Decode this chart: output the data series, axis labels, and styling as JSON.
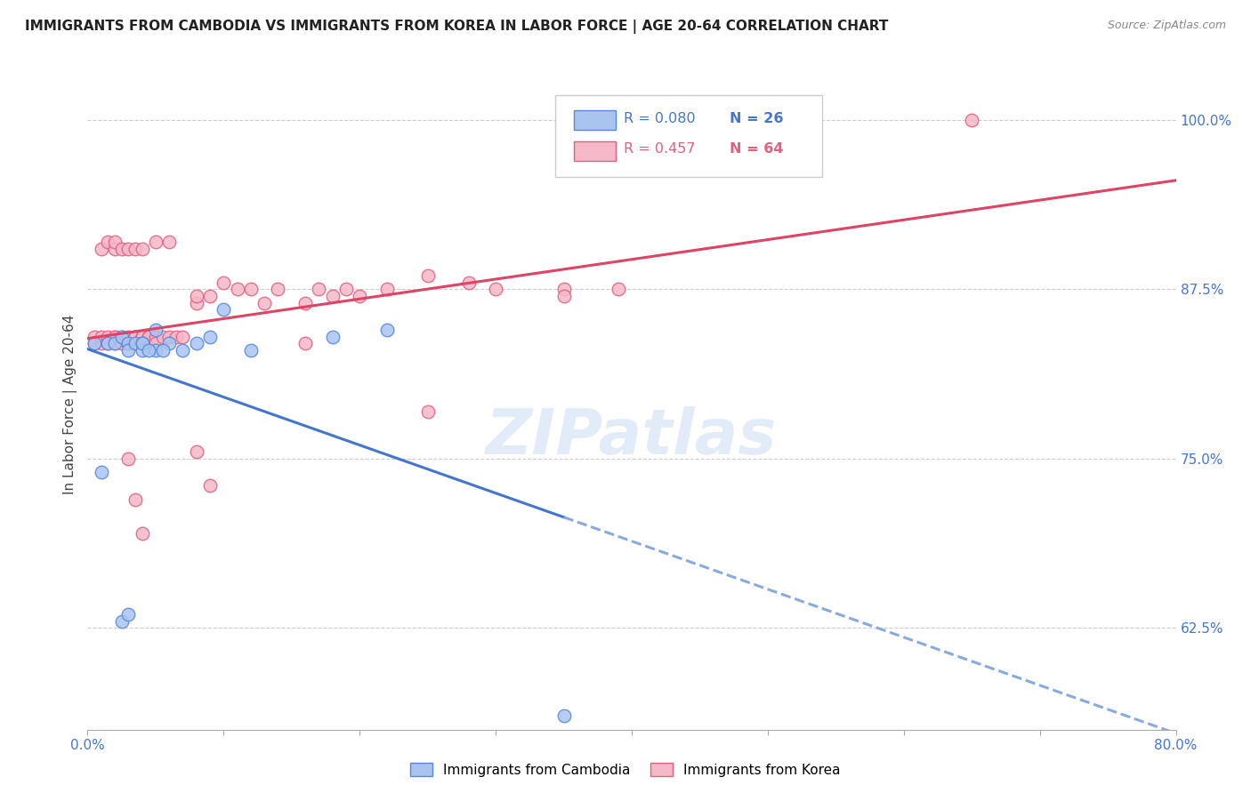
{
  "title": "IMMIGRANTS FROM CAMBODIA VS IMMIGRANTS FROM KOREA IN LABOR FORCE | AGE 20-64 CORRELATION CHART",
  "source": "Source: ZipAtlas.com",
  "ylabel": "In Labor Force | Age 20-64",
  "xlim": [
    0.0,
    0.8
  ],
  "ylim": [
    0.55,
    1.03
  ],
  "xticks": [
    0.0,
    0.1,
    0.2,
    0.3,
    0.4,
    0.5,
    0.6,
    0.7,
    0.8
  ],
  "yticks_right": [
    0.625,
    0.75,
    0.875,
    1.0
  ],
  "yticklabels_right": [
    "62.5%",
    "75.0%",
    "87.5%",
    "100.0%"
  ],
  "cambodia_color": "#aac4f0",
  "cambodia_edge": "#5588dd",
  "korea_color": "#f5b8c8",
  "korea_edge": "#e06080",
  "legend_R_cambodia": "R = 0.080",
  "legend_N_cambodia": "N = 26",
  "legend_R_korea": "R = 0.457",
  "legend_N_korea": "N = 64",
  "watermark": "ZIPatlas",
  "cambodia_x": [
    0.005,
    0.01,
    0.015,
    0.02,
    0.025,
    0.03,
    0.03,
    0.035,
    0.04,
    0.04,
    0.05,
    0.06,
    0.07,
    0.08,
    0.09,
    0.1,
    0.12,
    0.18,
    0.22,
    0.04,
    0.045,
    0.05,
    0.055,
    0.025,
    0.03,
    0.35
  ],
  "cambodia_y": [
    0.835,
    0.74,
    0.835,
    0.835,
    0.84,
    0.835,
    0.83,
    0.835,
    0.835,
    0.83,
    0.83,
    0.835,
    0.83,
    0.835,
    0.84,
    0.86,
    0.83,
    0.84,
    0.845,
    0.835,
    0.83,
    0.845,
    0.83,
    0.63,
    0.635,
    0.56
  ],
  "korea_x": [
    0.005,
    0.005,
    0.01,
    0.01,
    0.015,
    0.015,
    0.02,
    0.02,
    0.02,
    0.025,
    0.025,
    0.03,
    0.03,
    0.035,
    0.035,
    0.04,
    0.04,
    0.04,
    0.045,
    0.045,
    0.05,
    0.05,
    0.055,
    0.06,
    0.065,
    0.07,
    0.08,
    0.08,
    0.09,
    0.1,
    0.11,
    0.12,
    0.13,
    0.14,
    0.16,
    0.17,
    0.18,
    0.19,
    0.2,
    0.22,
    0.25,
    0.28,
    0.3,
    0.35,
    0.39,
    0.01,
    0.015,
    0.02,
    0.02,
    0.025,
    0.03,
    0.035,
    0.04,
    0.05,
    0.06,
    0.35,
    0.03,
    0.035,
    0.04,
    0.16,
    0.25,
    0.08,
    0.09,
    0.65
  ],
  "korea_y": [
    0.84,
    0.835,
    0.835,
    0.84,
    0.84,
    0.835,
    0.84,
    0.835,
    0.84,
    0.835,
    0.84,
    0.84,
    0.835,
    0.84,
    0.84,
    0.84,
    0.84,
    0.84,
    0.84,
    0.84,
    0.84,
    0.835,
    0.84,
    0.84,
    0.84,
    0.84,
    0.865,
    0.87,
    0.87,
    0.88,
    0.875,
    0.875,
    0.865,
    0.875,
    0.865,
    0.875,
    0.87,
    0.875,
    0.87,
    0.875,
    0.885,
    0.88,
    0.875,
    0.875,
    0.875,
    0.905,
    0.91,
    0.905,
    0.91,
    0.905,
    0.905,
    0.905,
    0.905,
    0.91,
    0.91,
    0.87,
    0.75,
    0.72,
    0.695,
    0.835,
    0.785,
    0.755,
    0.73,
    1.0
  ]
}
